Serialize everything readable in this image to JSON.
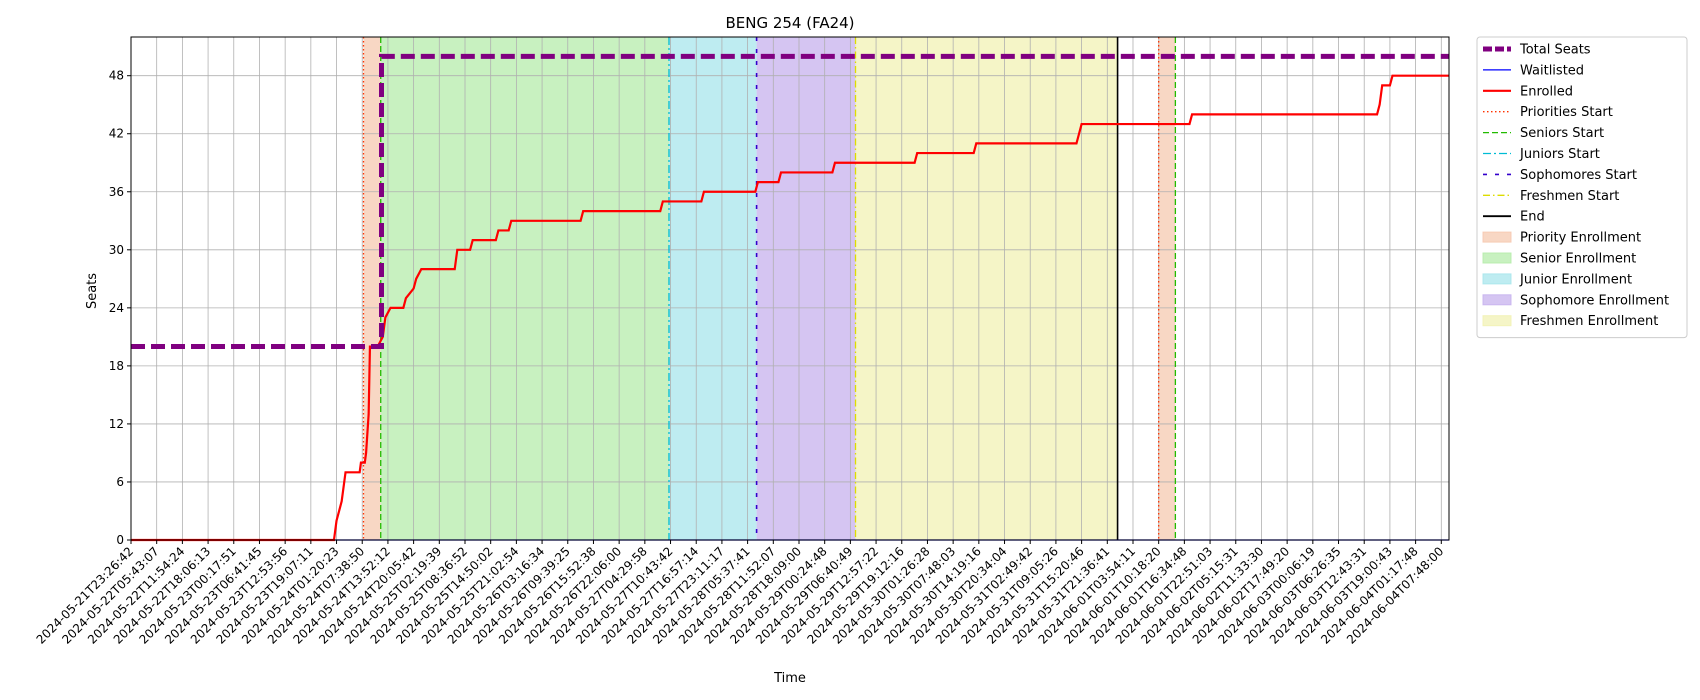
{
  "chart_data": {
    "type": "line",
    "title": "BENG 254 (FA24)",
    "xlabel": "Time",
    "ylabel": "Seats",
    "ylim": [
      0,
      52
    ],
    "yticks": [
      0,
      6,
      12,
      18,
      24,
      30,
      36,
      42,
      48
    ],
    "grid": true,
    "legend_position": "outside-right",
    "x_tick_labels": [
      "2024-05-21T23:26:42",
      "2024-05-22T05:43:07",
      "2024-05-22T11:54:24",
      "2024-05-22T18:06:13",
      "2024-05-23T00:17:51",
      "2024-05-23T06:41:45",
      "2024-05-23T12:53:56",
      "2024-05-23T19:07:11",
      "2024-05-24T01:20:23",
      "2024-05-24T07:38:50",
      "2024-05-24T13:52:12",
      "2024-05-24T20:05:42",
      "2024-05-25T02:19:39",
      "2024-05-25T08:36:52",
      "2024-05-25T14:50:02",
      "2024-05-25T21:02:54",
      "2024-05-26T03:16:34",
      "2024-05-26T09:39:25",
      "2024-05-26T15:52:38",
      "2024-05-26T22:06:00",
      "2024-05-27T04:29:58",
      "2024-05-27T10:43:42",
      "2024-05-27T16:57:14",
      "2024-05-27T23:11:17",
      "2024-05-28T05:37:41",
      "2024-05-28T11:52:07",
      "2024-05-28T18:09:00",
      "2024-05-29T00:24:48",
      "2024-05-29T06:40:49",
      "2024-05-29T12:57:22",
      "2024-05-29T19:12:16",
      "2024-05-30T01:26:28",
      "2024-05-30T07:48:03",
      "2024-05-30T14:19:16",
      "2024-05-30T20:34:04",
      "2024-05-31T02:49:42",
      "2024-05-31T09:05:26",
      "2024-05-31T15:20:46",
      "2024-05-31T21:36:41",
      "2024-06-01T03:54:11",
      "2024-06-01T10:18:20",
      "2024-06-01T16:34:48",
      "2024-06-01T22:51:03",
      "2024-06-02T05:15:31",
      "2024-06-02T11:33:30",
      "2024-06-02T17:49:20",
      "2024-06-03T00:06:19",
      "2024-06-03T06:26:35",
      "2024-06-03T12:43:31",
      "2024-06-03T19:00:43",
      "2024-06-04T01:17:48",
      "2024-06-04T07:48:00"
    ],
    "series": [
      {
        "name": "Total Seats",
        "color": "#800080",
        "style": "dashed-thick",
        "points": [
          [
            0,
            20
          ],
          [
            9.1,
            20
          ],
          [
            9.75,
            20
          ],
          [
            9.75,
            50
          ],
          [
            51.3,
            50
          ]
        ]
      },
      {
        "name": "Waitlisted",
        "color": "#0000ff",
        "style": "solid-thin",
        "points": [
          [
            0,
            0
          ],
          [
            51.3,
            0
          ]
        ]
      },
      {
        "name": "Enrolled",
        "color": "#ff0000",
        "style": "solid",
        "points": [
          [
            0,
            0
          ],
          [
            7.9,
            0
          ],
          [
            8.0,
            2
          ],
          [
            8.1,
            3
          ],
          [
            8.2,
            4
          ],
          [
            8.35,
            7
          ],
          [
            8.9,
            7
          ],
          [
            8.95,
            8
          ],
          [
            9.1,
            8
          ],
          [
            9.15,
            9
          ],
          [
            9.25,
            13
          ],
          [
            9.3,
            20
          ],
          [
            9.6,
            20
          ],
          [
            9.8,
            21
          ],
          [
            9.9,
            23
          ],
          [
            10.1,
            24
          ],
          [
            10.6,
            24
          ],
          [
            10.7,
            25
          ],
          [
            11.0,
            26
          ],
          [
            11.1,
            27
          ],
          [
            11.3,
            28
          ],
          [
            12.6,
            28
          ],
          [
            12.7,
            30
          ],
          [
            13.2,
            30
          ],
          [
            13.3,
            31
          ],
          [
            14.2,
            31
          ],
          [
            14.3,
            32
          ],
          [
            14.7,
            32
          ],
          [
            14.8,
            33
          ],
          [
            17.5,
            33
          ],
          [
            17.6,
            34
          ],
          [
            20.6,
            34
          ],
          [
            20.7,
            35
          ],
          [
            22.2,
            35
          ],
          [
            22.3,
            36
          ],
          [
            24.3,
            36
          ],
          [
            24.4,
            37
          ],
          [
            25.2,
            37
          ],
          [
            25.3,
            38
          ],
          [
            27.3,
            38
          ],
          [
            27.4,
            39
          ],
          [
            30.5,
            39
          ],
          [
            30.6,
            40
          ],
          [
            32.8,
            40
          ],
          [
            32.9,
            41
          ],
          [
            36.8,
            41
          ],
          [
            36.9,
            42
          ],
          [
            37.0,
            43
          ],
          [
            41.2,
            43
          ],
          [
            41.3,
            44
          ],
          [
            48.5,
            44
          ],
          [
            48.6,
            45
          ],
          [
            48.7,
            47
          ],
          [
            49.0,
            47
          ],
          [
            49.1,
            48
          ],
          [
            51.3,
            48
          ]
        ]
      }
    ],
    "vertical_lines": [
      {
        "name": "Priorities Start",
        "color": "#ff3300",
        "style": "dotted",
        "x": [
          9.05,
          40.0
        ]
      },
      {
        "name": "Seniors Start",
        "color": "#22bb00",
        "style": "dashed",
        "x": [
          9.72,
          40.65
        ]
      },
      {
        "name": "Juniors Start",
        "color": "#00bcd4",
        "style": "dashdot",
        "x": [
          20.94
        ]
      },
      {
        "name": "Sophomores Start",
        "color": "#3300cc",
        "style": "loosedash",
        "x": [
          24.35
        ]
      },
      {
        "name": "Freshmen Start",
        "color": "#dddd00",
        "style": "dashdot-light",
        "x": [
          28.2
        ]
      },
      {
        "name": "End",
        "color": "#000000",
        "style": "solid",
        "x": [
          38.4
        ]
      }
    ],
    "spans": [
      {
        "name": "Priority Enrollment",
        "color": "#f6c9b0",
        "ranges": [
          [
            9.05,
            9.72
          ],
          [
            40.0,
            40.65
          ]
        ]
      },
      {
        "name": "Senior Enrollment",
        "color": "#b5ecab",
        "ranges": [
          [
            9.72,
            20.94
          ]
        ]
      },
      {
        "name": "Junior Enrollment",
        "color": "#a8e6ec",
        "ranges": [
          [
            20.94,
            24.35
          ]
        ]
      },
      {
        "name": "Sophomore Enrollment",
        "color": "#c7b2ee",
        "ranges": [
          [
            24.35,
            28.2
          ]
        ]
      },
      {
        "name": "Freshmen Enrollment",
        "color": "#f2f2b4",
        "ranges": [
          [
            28.2,
            38.4
          ]
        ]
      }
    ],
    "legend": [
      {
        "label": "Total Seats",
        "kind": "line",
        "color": "#800080",
        "style": "dashed-thick"
      },
      {
        "label": "Waitlisted",
        "kind": "line",
        "color": "#0000ff",
        "style": "solid-thin"
      },
      {
        "label": "Enrolled",
        "kind": "line",
        "color": "#ff0000",
        "style": "solid"
      },
      {
        "label": "Priorities Start",
        "kind": "line",
        "color": "#ff3300",
        "style": "dotted"
      },
      {
        "label": "Seniors Start",
        "kind": "line",
        "color": "#22bb00",
        "style": "dashed"
      },
      {
        "label": "Juniors Start",
        "kind": "line",
        "color": "#00bcd4",
        "style": "dashdot"
      },
      {
        "label": "Sophomores Start",
        "kind": "line",
        "color": "#3300cc",
        "style": "loosedash"
      },
      {
        "label": "Freshmen Start",
        "kind": "line",
        "color": "#dddd00",
        "style": "dashdot-light"
      },
      {
        "label": "End",
        "kind": "line",
        "color": "#000000",
        "style": "solid"
      },
      {
        "label": "Priority Enrollment",
        "kind": "patch",
        "color": "#f6c9b0"
      },
      {
        "label": "Senior Enrollment",
        "kind": "patch",
        "color": "#b5ecab"
      },
      {
        "label": "Junior Enrollment",
        "kind": "patch",
        "color": "#a8e6ec"
      },
      {
        "label": "Sophomore Enrollment",
        "kind": "patch",
        "color": "#c7b2ee"
      },
      {
        "label": "Freshmen Enrollment",
        "kind": "patch",
        "color": "#f2f2b4"
      }
    ]
  }
}
